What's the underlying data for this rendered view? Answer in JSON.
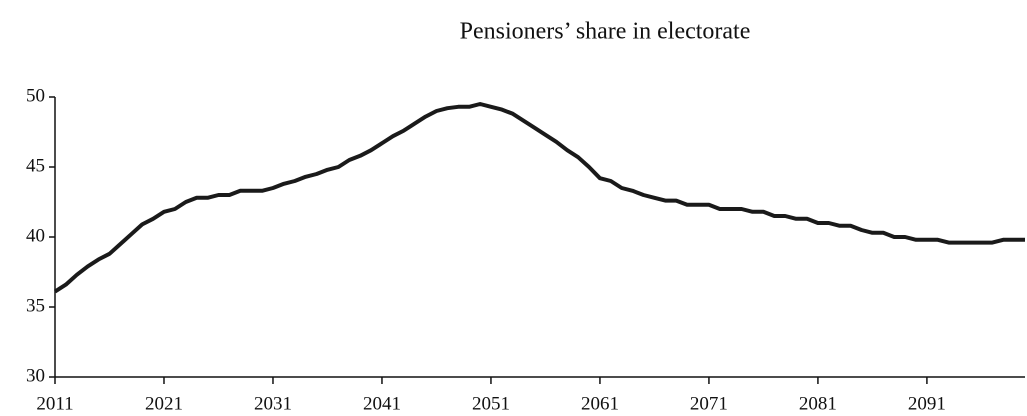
{
  "chart_data": {
    "type": "line",
    "title": "Pensioners’ share in electorate",
    "x": [
      2011,
      2012,
      2013,
      2014,
      2015,
      2016,
      2017,
      2018,
      2019,
      2020,
      2021,
      2022,
      2023,
      2024,
      2025,
      2026,
      2027,
      2028,
      2029,
      2030,
      2031,
      2032,
      2033,
      2034,
      2035,
      2036,
      2037,
      2038,
      2039,
      2040,
      2041,
      2042,
      2043,
      2044,
      2045,
      2046,
      2047,
      2048,
      2049,
      2050,
      2051,
      2052,
      2053,
      2054,
      2055,
      2056,
      2057,
      2058,
      2059,
      2060,
      2061,
      2062,
      2063,
      2064,
      2065,
      2066,
      2067,
      2068,
      2069,
      2070,
      2071,
      2072,
      2073,
      2074,
      2075,
      2076,
      2077,
      2078,
      2079,
      2080,
      2081,
      2082,
      2083,
      2084,
      2085,
      2086,
      2087,
      2088,
      2089,
      2090,
      2091,
      2092,
      2093,
      2094,
      2095,
      2096,
      2097,
      2098,
      2099,
      2100
    ],
    "series": [
      {
        "color": "#1a1a1a",
        "values": [
          36.1,
          36.6,
          37.3,
          37.9,
          38.4,
          38.8,
          39.5,
          40.2,
          40.9,
          41.3,
          41.8,
          42.0,
          42.5,
          42.8,
          42.8,
          43.0,
          43.0,
          43.3,
          43.3,
          43.3,
          43.5,
          43.8,
          44.0,
          44.3,
          44.5,
          44.8,
          45.0,
          45.5,
          45.8,
          46.2,
          46.7,
          47.2,
          47.6,
          48.1,
          48.6,
          49.0,
          49.2,
          49.3,
          49.3,
          49.5,
          49.3,
          49.1,
          48.8,
          48.3,
          47.8,
          47.3,
          46.8,
          46.2,
          45.7,
          45.0,
          44.2,
          44.0,
          43.5,
          43.3,
          43.0,
          42.8,
          42.6,
          42.6,
          42.3,
          42.3,
          42.3,
          42.0,
          42.0,
          42.0,
          41.8,
          41.8,
          41.5,
          41.5,
          41.3,
          41.3,
          41.0,
          41.0,
          40.8,
          40.8,
          40.5,
          40.3,
          40.3,
          40.0,
          40.0,
          39.8,
          39.8,
          39.8,
          39.6,
          39.6,
          39.6,
          39.6,
          39.6,
          39.8,
          39.8,
          39.8
        ]
      }
    ],
    "xlim": [
      2011,
      2100
    ],
    "xticks": [
      2011,
      2021,
      2031,
      2041,
      2051,
      2061,
      2071,
      2081,
      2091
    ],
    "ylim": [
      30,
      50
    ],
    "yticks": [
      30,
      35,
      40,
      45,
      50
    ],
    "grid": false
  }
}
